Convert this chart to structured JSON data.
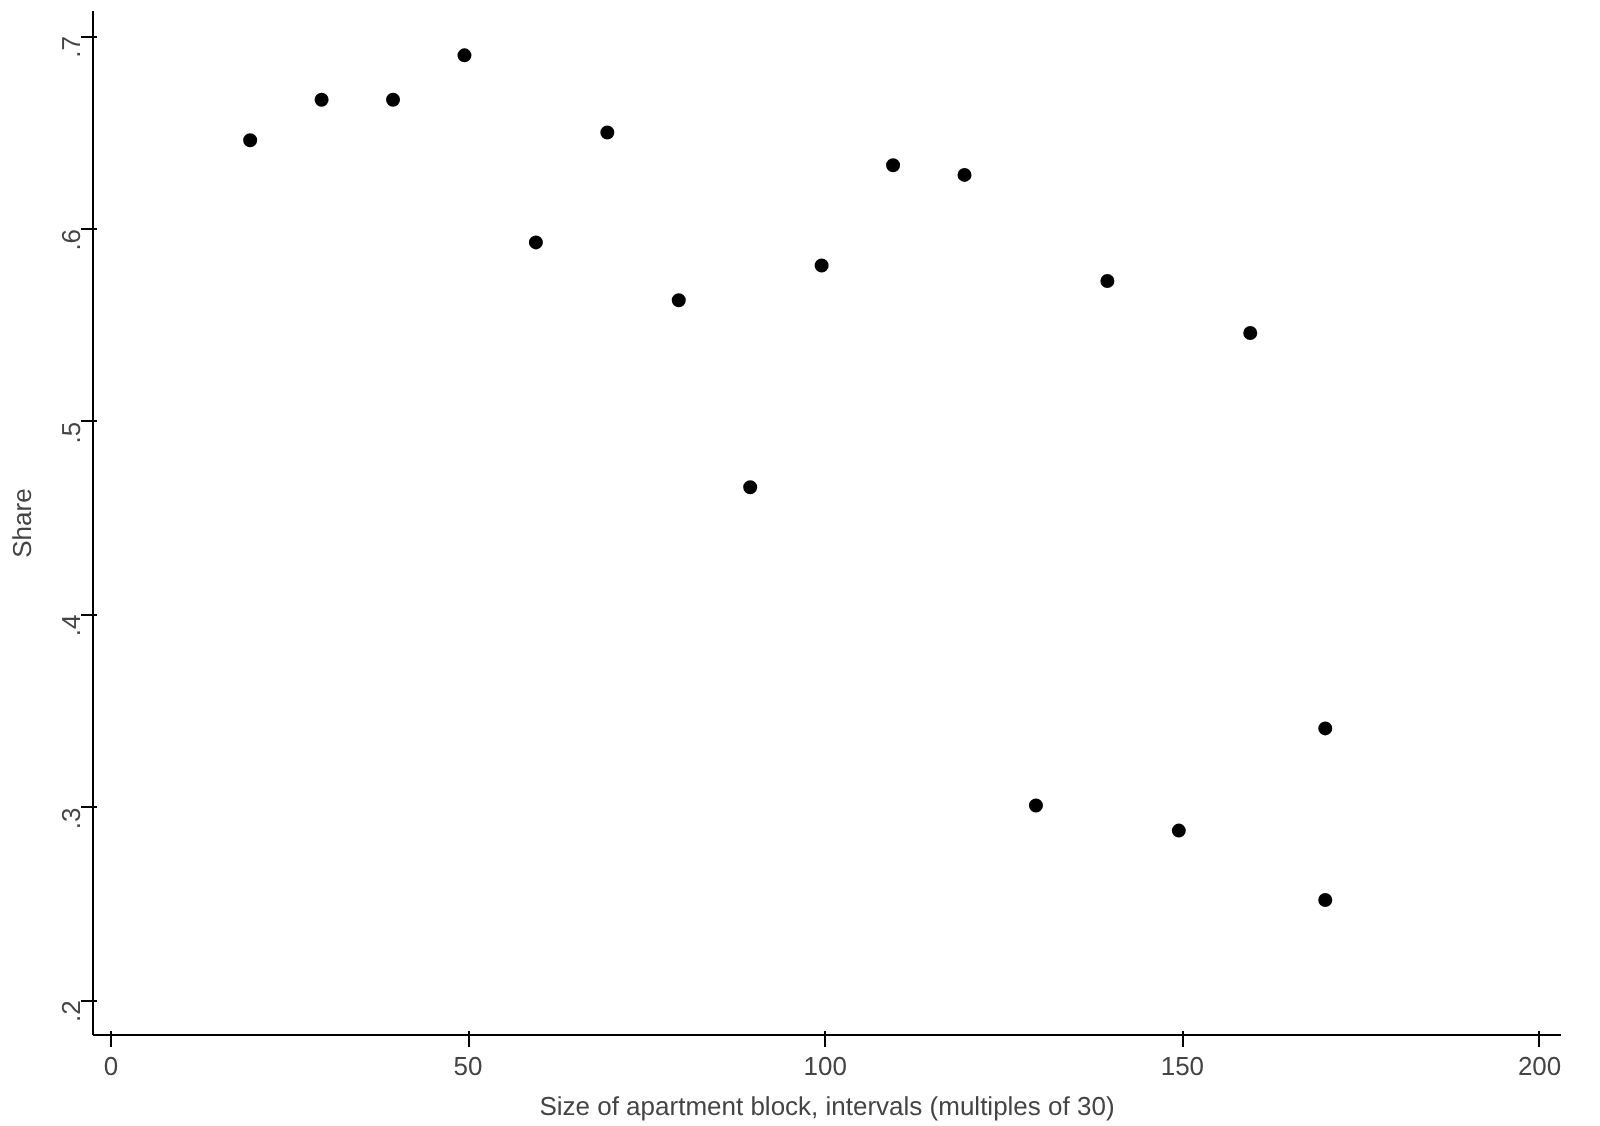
{
  "chart_data": {
    "type": "scatter",
    "xlabel": "Size of apartment block, intervals (multiples of 30)",
    "ylabel": "Share",
    "x": [
      19.5,
      29.5,
      39.5,
      49.5,
      59.5,
      69.5,
      79.5,
      89.5,
      99.5,
      109.5,
      119.5,
      129.5,
      139.5,
      149.5,
      159.5,
      170,
      170
    ],
    "series": [
      {
        "color": "#000000",
        "values": [
          0.646,
          0.667,
          0.667,
          0.69,
          0.593,
          0.65,
          0.563,
          0.466,
          0.581,
          0.633,
          0.628,
          0.301,
          0.573,
          0.288,
          0.546,
          0.341,
          0.252
        ]
      }
    ],
    "xlim": [
      -2.5,
      203
    ],
    "ylim": [
      0.182,
      0.713
    ],
    "xticks": [
      0,
      50,
      100,
      150,
      200
    ],
    "yticks": [
      {
        "value": 0.2,
        "label": ".2"
      },
      {
        "value": 0.3,
        "label": ".3"
      },
      {
        "value": 0.4,
        "label": ".4"
      },
      {
        "value": 0.5,
        "label": ".5"
      },
      {
        "value": 0.6,
        "label": ".6"
      },
      {
        "value": 0.7,
        "label": ".7"
      }
    ],
    "grid": false,
    "marker": "circle"
  }
}
